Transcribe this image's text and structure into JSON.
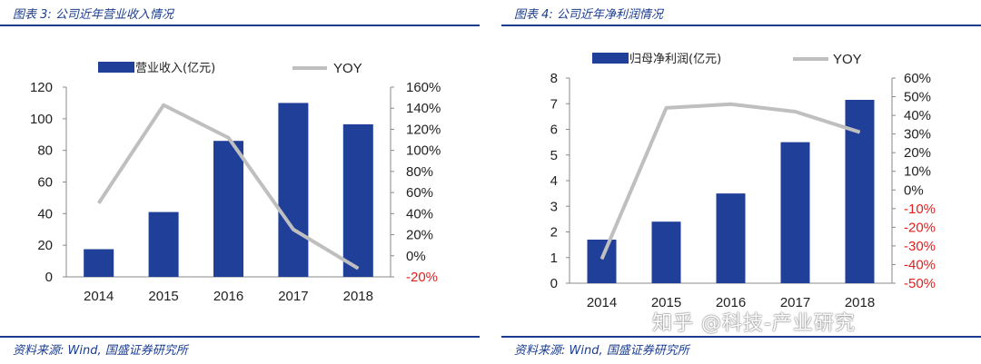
{
  "charts": [
    {
      "title": "图表 3:  公司近年营业收入情况",
      "source": "资料来源:  Wind, 国盛证券研究所"
    },
    {
      "title": "图表 4:  公司近年净利润情况",
      "source": "资料来源:  Wind, 国盛证券研究所"
    }
  ],
  "watermark": "知乎 @科技-产业研究",
  "colors": {
    "bar": "#1f3f99",
    "line": "#bfbfbf",
    "accent": "#1a3d8f",
    "negative": "#e02020"
  },
  "chart_data": [
    {
      "type": "bar",
      "title": "图表 3:  公司近年营业收入情况",
      "categories": [
        "2014",
        "2015",
        "2016",
        "2017",
        "2018"
      ],
      "series": [
        {
          "name": "营业收入(亿元)",
          "type": "bar",
          "axis": "left",
          "values": [
            17.5,
            41,
            86,
            110,
            96.5
          ]
        },
        {
          "name": "YOY",
          "type": "line",
          "axis": "right",
          "values": [
            50,
            143,
            112,
            25,
            -12
          ]
        }
      ],
      "y_left": {
        "min": 0,
        "max": 120,
        "ticks": [
          "0",
          "20",
          "40",
          "60",
          "80",
          "100",
          "120"
        ]
      },
      "y_right": {
        "min": -20,
        "max": 160,
        "ticks": [
          "-20%",
          "0%",
          "20%",
          "40%",
          "60%",
          "80%",
          "100%",
          "120%",
          "140%",
          "160%"
        ]
      },
      "legend": "top"
    },
    {
      "type": "bar",
      "title": "图表 4:  公司近年净利润情况",
      "categories": [
        "2014",
        "2015",
        "2016",
        "2017",
        "2018"
      ],
      "series": [
        {
          "name": "归母净利润(亿元)",
          "type": "bar",
          "axis": "left",
          "values": [
            1.7,
            2.4,
            3.5,
            5.5,
            7.15
          ]
        },
        {
          "name": "YOY",
          "type": "line",
          "axis": "right",
          "values": [
            -37,
            44,
            46,
            42,
            31
          ]
        }
      ],
      "y_left": {
        "min": 0,
        "max": 8,
        "ticks": [
          "0",
          "1",
          "2",
          "3",
          "4",
          "5",
          "6",
          "7",
          "8"
        ]
      },
      "y_right": {
        "min": -50,
        "max": 60,
        "ticks": [
          "-50%",
          "-40%",
          "-30%",
          "-20%",
          "-10%",
          "0%",
          "10%",
          "20%",
          "30%",
          "40%",
          "50%",
          "60%"
        ]
      },
      "legend": "top"
    }
  ]
}
